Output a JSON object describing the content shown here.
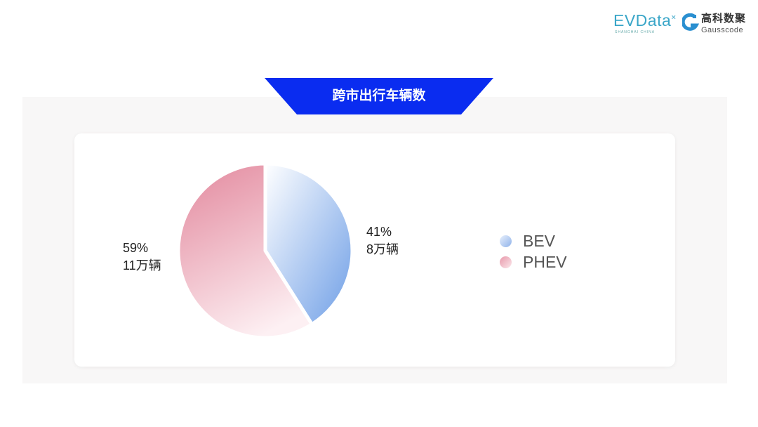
{
  "logos": {
    "evdata": "EVData",
    "evdata_sub": "SHANGHAI CHINA",
    "gauss_cn": "高科数聚",
    "gauss_en": "Gausscode"
  },
  "banner": {
    "title": "跨市出行车辆数",
    "color": "#0a2cf0"
  },
  "chart_data": {
    "type": "pie",
    "title": "跨市出行车辆数",
    "slices": [
      {
        "name": "BEV",
        "percent": 41,
        "value_label": "8万辆",
        "pct_label": "41%",
        "color_from": "#ffffff",
        "color_to": "#6e9ee6"
      },
      {
        "name": "PHEV",
        "percent": 59,
        "value_label": "11万辆",
        "pct_label": "59%",
        "color_from": "#e48ea2",
        "color_to": "#fdf0f3"
      }
    ],
    "legend_position": "right"
  }
}
